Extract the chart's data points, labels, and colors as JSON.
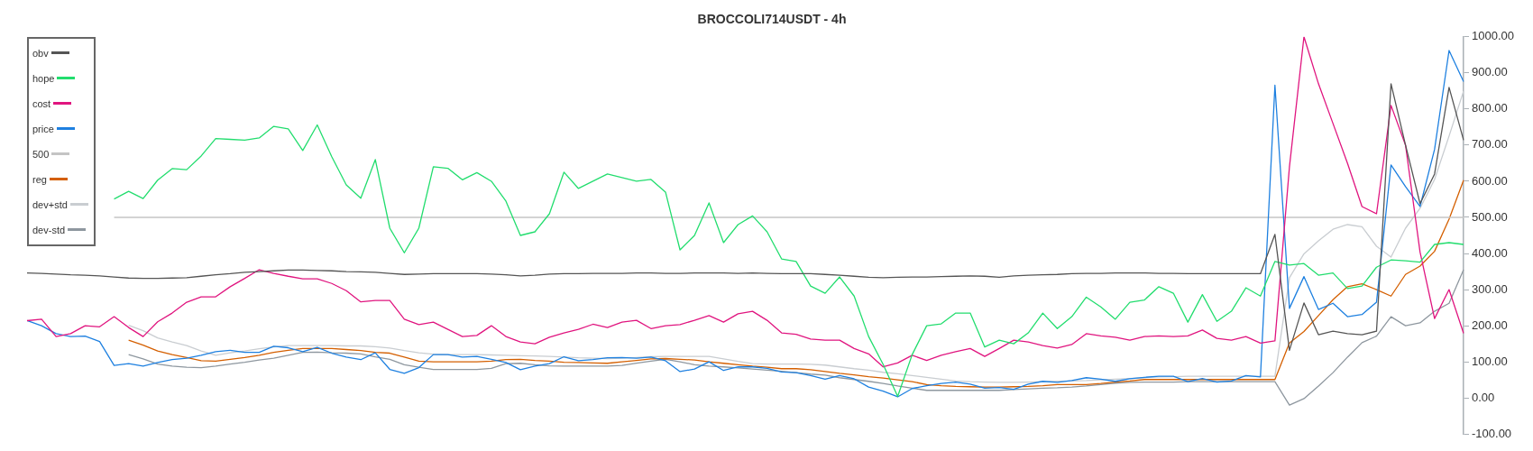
{
  "chart_data": {
    "type": "line",
    "title": "BROCCOLI714USDT - 4h",
    "categories": [
      null,
      null,
      null,
      null,
      null,
      null,
      null,
      null,
      null,
      null,
      null,
      null,
      null,
      null,
      null,
      null,
      null,
      null,
      null,
      null,
      null,
      null,
      null,
      null,
      null,
      null,
      null,
      null,
      null,
      null,
      null,
      null,
      null,
      null,
      null,
      null,
      null,
      null,
      null,
      null,
      null,
      null,
      null,
      null,
      null,
      null,
      null,
      null,
      null,
      null,
      null,
      null,
      null,
      null,
      null,
      null,
      null,
      null,
      null,
      null,
      null,
      null,
      null,
      null,
      null,
      null,
      null,
      null,
      null,
      null,
      null,
      null,
      null,
      null,
      null,
      null,
      null,
      null,
      null,
      null,
      null,
      null,
      null,
      null,
      null,
      null,
      null,
      null,
      null,
      null,
      null,
      null,
      null,
      null,
      null,
      null,
      null,
      null,
      null,
      null
    ],
    "ylim": [
      -100,
      1000
    ],
    "yticks": [
      {
        "value": -100,
        "label": "-100.00"
      },
      {
        "value": 0,
        "label": "0.00"
      },
      {
        "value": 100,
        "label": "100.00"
      },
      {
        "value": 200,
        "label": "200.00"
      },
      {
        "value": 300,
        "label": "300.00"
      },
      {
        "value": 400,
        "label": "400.00"
      },
      {
        "value": 500,
        "label": "500.00"
      },
      {
        "value": 600,
        "label": "600.00"
      },
      {
        "value": 700,
        "label": "700.00"
      },
      {
        "value": 800,
        "label": "800.00"
      },
      {
        "value": 900,
        "label": "900.00"
      },
      {
        "value": 1000,
        "label": "1000.00"
      }
    ],
    "tick_labels": "y",
    "grid": false,
    "legend": "top left",
    "series": [
      {
        "name": "obv",
        "color": "#555555",
        "values": [
          346,
          345,
          343,
          341,
          340,
          338,
          335,
          332,
          331,
          331,
          332,
          333,
          337,
          341,
          344,
          348,
          350,
          352,
          354,
          354,
          353,
          352,
          350,
          349,
          348,
          345,
          342,
          343,
          344,
          344,
          344,
          344,
          343,
          341,
          338,
          340,
          343,
          344,
          344,
          345,
          345,
          345,
          346,
          346,
          345,
          345,
          346,
          346,
          346,
          345,
          346,
          345,
          344,
          344,
          344,
          342,
          340,
          337,
          334,
          333,
          334,
          335,
          335,
          336,
          337,
          338,
          337,
          334,
          338,
          340,
          341,
          342,
          344,
          345,
          345,
          346,
          346,
          346,
          345,
          345,
          344,
          344,
          344,
          344,
          344,
          344,
          453,
          132,
          263,
          175,
          185,
          178,
          175,
          185,
          870,
          700,
          538,
          620,
          860,
          714
        ]
      },
      {
        "name": "hope",
        "color": "#22dd6e",
        "values": [
          null,
          null,
          null,
          null,
          null,
          null,
          551,
          572,
          552,
          603,
          635,
          632,
          670,
          718,
          716,
          714,
          720,
          752,
          745,
          685,
          756,
          668,
          590,
          553,
          660,
          470,
          402,
          470,
          640,
          636,
          604,
          624,
          600,
          545,
          450,
          460,
          510,
          625,
          580,
          600,
          620,
          610,
          600,
          605,
          570,
          410,
          450,
          540,
          430,
          480,
          504,
          460,
          385,
          378,
          310,
          290,
          335,
          282,
          170,
          93,
          4,
          120,
          200,
          205,
          235,
          235,
          141,
          160,
          150,
          180,
          235,
          192,
          225,
          279,
          252,
          218,
          265,
          271,
          308,
          290,
          210,
          286,
          212,
          240,
          305,
          282,
          378,
          368,
          372,
          340,
          346,
          303,
          310,
          362,
          382,
          380,
          376,
          425,
          430,
          425
        ]
      },
      {
        "name": "cost",
        "color": "#e0157f",
        "values": [
          214,
          218,
          170,
          178,
          200,
          197,
          225,
          195,
          170,
          211,
          235,
          265,
          280,
          280,
          308,
          331,
          355,
          345,
          337,
          330,
          330,
          317,
          297,
          266,
          270,
          270,
          218,
          203,
          210,
          190,
          170,
          173,
          200,
          170,
          155,
          150,
          168,
          180,
          190,
          204,
          195,
          210,
          215,
          192,
          200,
          203,
          215,
          228,
          210,
          233,
          240,
          215,
          180,
          176,
          163,
          160,
          160,
          137,
          122,
          86,
          97,
          118,
          104,
          118,
          128,
          137,
          115,
          137,
          160,
          155,
          145,
          138,
          148,
          178,
          172,
          168,
          160,
          170,
          172,
          170,
          172,
          188,
          165,
          160,
          170,
          152,
          158,
          640,
          1000,
          870,
          760,
          650,
          530,
          510,
          810,
          700,
          404,
          220,
          300,
          179
        ]
      },
      {
        "name": "price",
        "color": "#1e80e0",
        "values": [
          214,
          200,
          178,
          170,
          171,
          156,
          90,
          95,
          88,
          98,
          106,
          110,
          118,
          128,
          132,
          126,
          126,
          143,
          139,
          128,
          140,
          124,
          113,
          106,
          125,
          79,
          68,
          84,
          120,
          120,
          113,
          115,
          107,
          98,
          78,
          88,
          95,
          114,
          103,
          106,
          111,
          112,
          110,
          113,
          103,
          73,
          80,
          100,
          76,
          86,
          86,
          82,
          72,
          70,
          62,
          52,
          62,
          53,
          30,
          19,
          3,
          26,
          34,
          40,
          44,
          38,
          27,
          29,
          24,
          38,
          46,
          43,
          48,
          56,
          52,
          46,
          53,
          57,
          60,
          60,
          45,
          54,
          44,
          47,
          62,
          58,
          866,
          248,
          336,
          245,
          262,
          225,
          231,
          265,
          645,
          585,
          530,
          688,
          962,
          876
        ]
      },
      {
        "name": "500",
        "color": "#c4c4c4",
        "values": [
          null,
          null,
          null,
          null,
          null,
          null,
          500,
          500,
          500,
          500,
          500,
          500,
          500,
          500,
          500,
          500,
          500,
          500,
          500,
          500,
          500,
          500,
          500,
          500,
          500,
          500,
          500,
          500,
          500,
          500,
          500,
          500,
          500,
          500,
          500,
          500,
          500,
          500,
          500,
          500,
          500,
          500,
          500,
          500,
          500,
          500,
          500,
          500,
          500,
          500,
          500,
          500,
          500,
          500,
          500,
          500,
          500,
          500,
          500,
          500,
          500,
          500,
          500,
          500,
          500,
          500,
          500,
          500,
          500,
          500,
          500,
          500,
          500,
          500,
          500,
          500,
          500,
          500,
          500,
          500,
          500,
          500,
          500,
          500,
          500,
          500,
          500,
          500,
          500,
          500,
          500,
          500,
          500,
          500,
          500,
          500,
          500,
          500,
          500,
          500
        ]
      },
      {
        "name": "reg",
        "color": "#d45f00",
        "values": [
          null,
          null,
          null,
          null,
          null,
          null,
          null,
          160,
          146,
          130,
          120,
          112,
          103,
          102,
          107,
          112,
          118,
          126,
          132,
          137,
          137,
          137,
          134,
          131,
          126,
          124,
          113,
          102,
          100,
          100,
          100,
          100,
          102,
          106,
          107,
          104,
          102,
          99,
          98,
          97,
          96,
          100,
          104,
          108,
          109,
          107,
          105,
          100,
          96,
          92,
          88,
          85,
          81,
          81,
          78,
          73,
          68,
          64,
          59,
          55,
          50,
          45,
          37,
          34,
          32,
          31,
          30,
          30,
          31,
          32,
          34,
          37,
          37,
          37,
          40,
          44,
          47,
          51,
          51,
          51,
          51,
          51,
          51,
          51,
          51,
          51,
          51,
          152,
          184,
          228,
          272,
          308,
          316,
          300,
          282,
          342,
          365,
          406,
          495,
          603
        ]
      },
      {
        "name": "dev+std",
        "color": "#c9cdd1",
        "values": [
          null,
          null,
          null,
          null,
          null,
          null,
          null,
          201,
          186,
          166,
          155,
          145,
          130,
          118,
          125,
          130,
          136,
          141,
          145,
          145,
          145,
          145,
          144,
          144,
          142,
          138,
          131,
          125,
          121,
          120,
          120,
          120,
          119,
          118,
          117,
          116,
          115,
          113,
          111,
          110,
          109,
          110,
          112,
          114,
          115,
          115,
          115,
          115,
          108,
          101,
          95,
          94,
          94,
          94,
          93,
          91,
          86,
          81,
          77,
          71,
          67,
          62,
          57,
          52,
          47,
          45,
          44,
          43,
          43,
          44,
          45,
          46,
          47,
          48,
          50,
          52,
          54,
          56,
          58,
          59,
          60,
          60,
          60,
          60,
          60,
          60,
          60,
          333,
          399,
          435,
          467,
          480,
          474,
          420,
          390,
          470,
          525,
          605,
          725,
          850
        ]
      },
      {
        "name": "dev-std",
        "color": "#8e979f",
        "values": [
          null,
          null,
          null,
          null,
          null,
          null,
          null,
          120,
          108,
          94,
          88,
          85,
          84,
          88,
          94,
          99,
          105,
          110,
          118,
          126,
          127,
          125,
          124,
          122,
          114,
          107,
          92,
          85,
          79,
          79,
          79,
          79,
          82,
          95,
          96,
          92,
          89,
          88,
          88,
          88,
          88,
          90,
          96,
          102,
          107,
          100,
          92,
          88,
          86,
          83,
          80,
          77,
          74,
          70,
          66,
          63,
          56,
          51,
          46,
          40,
          33,
          27,
          21,
          21,
          21,
          21,
          21,
          21,
          23,
          25,
          27,
          28,
          30,
          33,
          37,
          41,
          43,
          44,
          44,
          44,
          45,
          45,
          45,
          45,
          45,
          45,
          45,
          -20,
          -2,
          33,
          70,
          113,
          153,
          171,
          225,
          200,
          208,
          240,
          262,
          355
        ]
      }
    ]
  }
}
